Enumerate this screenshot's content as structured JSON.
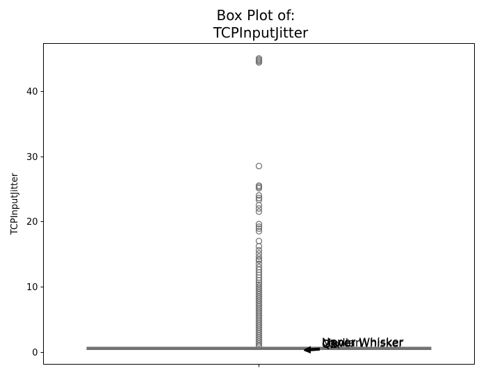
{
  "chart_data": {
    "type": "box",
    "title_lines": [
      "Box Plot of:",
      "TCPInputJitter"
    ],
    "xlabel": "",
    "ylabel": "TCPInputJitter",
    "ylim": [
      -1.9,
      47.3
    ],
    "yticks": [
      0,
      10,
      20,
      30,
      40
    ],
    "grid": false,
    "box_color": "#737373",
    "box": {
      "q1": 0.48,
      "median": 0.5,
      "q3": 0.55,
      "lower_whisker": 0.45,
      "upper_whisker": 0.62
    },
    "outliers": [
      45.0,
      44.8,
      44.6,
      44.4,
      28.5,
      25.5,
      25.3,
      25.1,
      24.0,
      23.6,
      23.3,
      22.5,
      22.0,
      21.5,
      19.6,
      19.2,
      18.9,
      18.5,
      17.0,
      16.2,
      15.6,
      15.1,
      14.6,
      14.2,
      14.0,
      13.5,
      13.0,
      12.6,
      12.2,
      11.8,
      11.4,
      11.0,
      10.6,
      10.3,
      10.0,
      9.7,
      9.4,
      9.1,
      8.8,
      8.5,
      8.2,
      7.9,
      7.6,
      7.3,
      7.0,
      6.7,
      6.4,
      6.1,
      5.8,
      5.5,
      5.2,
      4.9,
      4.6,
      4.3,
      4.0,
      3.7,
      3.4,
      3.1,
      2.8,
      2.5,
      2.2,
      1.9,
      1.6,
      1.3,
      1.0,
      0.8
    ],
    "annotations": [
      {
        "text": "Upper Whisker",
        "value": 0.62
      },
      {
        "text": "Q3",
        "value": 0.55
      },
      {
        "text": "Median",
        "value": 0.5
      },
      {
        "text": "Q1",
        "value": 0.48
      },
      {
        "text": "Lower Whisker",
        "value": 0.45
      }
    ]
  }
}
